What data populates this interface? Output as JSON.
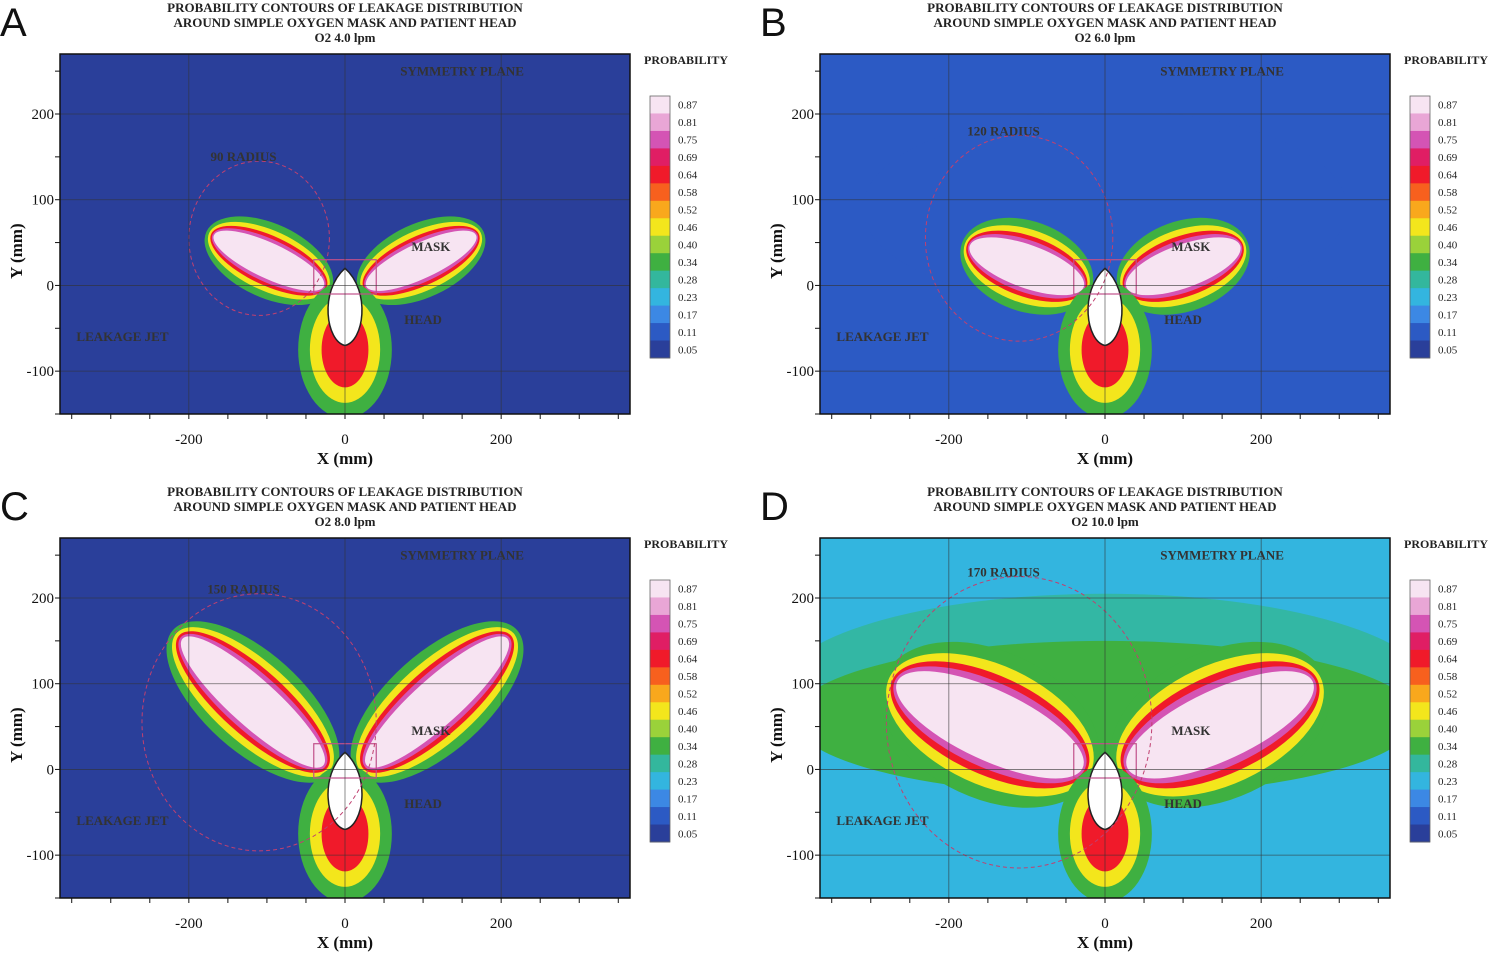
{
  "colorbar": {
    "title": "PROBABILITY",
    "levels": [
      "0.87",
      "0.81",
      "0.75",
      "0.69",
      "0.64",
      "0.58",
      "0.52",
      "0.46",
      "0.40",
      "0.34",
      "0.28",
      "0.23",
      "0.17",
      "0.11",
      "0.05"
    ],
    "colors": [
      "#f7e4f2",
      "#e9a6d6",
      "#d454b4",
      "#e01e64",
      "#f01a2a",
      "#f7601e",
      "#f9a81c",
      "#f3e61c",
      "#9ad23a",
      "#3fb041",
      "#33b79d",
      "#33b5df",
      "#3c88e4",
      "#2c5ac4",
      "#2a3f9a"
    ]
  },
  "chart_data": [
    {
      "panel": "A",
      "type": "heatmap",
      "title": [
        "PROBABILITY CONTOURS OF LEAKAGE DISTRIBUTION",
        "AROUND SIMPLE OXYGEN MASK AND PATIENT HEAD",
        "O2 4.0 lpm"
      ],
      "xlabel": "X (mm)",
      "ylabel": "Y (mm)",
      "xlim": [
        -365,
        365
      ],
      "ylim": [
        -150,
        270
      ],
      "xticks": [
        "-200",
        "0",
        "200"
      ],
      "yticks": [
        "200",
        "100",
        "0",
        "-100"
      ],
      "annotations": [
        "SYMMETRY PLANE",
        "90 RADIUS",
        "MASK",
        "HEAD",
        "LEAKAGE JET"
      ],
      "radius_mm": 90,
      "background_level": 0.05,
      "jet": {
        "angle_deg": 25,
        "length_mm": 160,
        "width_mm": 45
      }
    },
    {
      "panel": "B",
      "type": "heatmap",
      "title": [
        "PROBABILITY CONTOURS OF LEAKAGE DISTRIBUTION",
        "AROUND SIMPLE OXYGEN MASK AND PATIENT HEAD",
        "O2 6.0 lpm"
      ],
      "xlabel": "X (mm)",
      "ylabel": "Y (mm)",
      "xlim": [
        -365,
        365
      ],
      "ylim": [
        -150,
        270
      ],
      "xticks": [
        "-200",
        "0",
        "200"
      ],
      "yticks": [
        "200",
        "100",
        "0",
        "-100"
      ],
      "annotations": [
        "SYMMETRY PLANE",
        "120 RADIUS",
        "MASK",
        "HEAD",
        "LEAKAGE JET"
      ],
      "radius_mm": 120,
      "background_level": 0.11,
      "jet": {
        "angle_deg": 20,
        "length_mm": 160,
        "width_mm": 55
      }
    },
    {
      "panel": "C",
      "type": "heatmap",
      "title": [
        "PROBABILITY CONTOURS OF LEAKAGE DISTRIBUTION",
        "AROUND SIMPLE OXYGEN MASK AND PATIENT HEAD",
        "O2 8.0 lpm"
      ],
      "xlabel": "X (mm)",
      "ylabel": "Y (mm)",
      "xlim": [
        -365,
        365
      ],
      "ylim": [
        -150,
        270
      ],
      "xticks": [
        "-200",
        "0",
        "200"
      ],
      "yticks": [
        "200",
        "100",
        "0",
        "-100"
      ],
      "annotations": [
        "SYMMETRY PLANE",
        "150 RADIUS",
        "MASK",
        "HEAD",
        "LEAKAGE JET"
      ],
      "radius_mm": 150,
      "background_level": 0.05,
      "jet": {
        "angle_deg": 42,
        "length_mm": 250,
        "width_mm": 60
      }
    },
    {
      "panel": "D",
      "type": "heatmap",
      "title": [
        "PROBABILITY CONTOURS OF LEAKAGE DISTRIBUTION",
        "AROUND SIMPLE OXYGEN MASK AND PATIENT HEAD",
        "O2 10.0 lpm"
      ],
      "xlabel": "X (mm)",
      "ylabel": "Y (mm)",
      "xlim": [
        -365,
        365
      ],
      "ylim": [
        -150,
        270
      ],
      "xticks": [
        "-200",
        "0",
        "200"
      ],
      "yticks": [
        "200",
        "100",
        "0",
        "-100"
      ],
      "annotations": [
        "SYMMETRY PLANE",
        "170 RADIUS",
        "MASK",
        "HEAD",
        "LEAKAGE JET"
      ],
      "radius_mm": 170,
      "background_level": 0.23,
      "jet": {
        "angle_deg": 25,
        "length_mm": 270,
        "width_mm": 90
      }
    }
  ]
}
